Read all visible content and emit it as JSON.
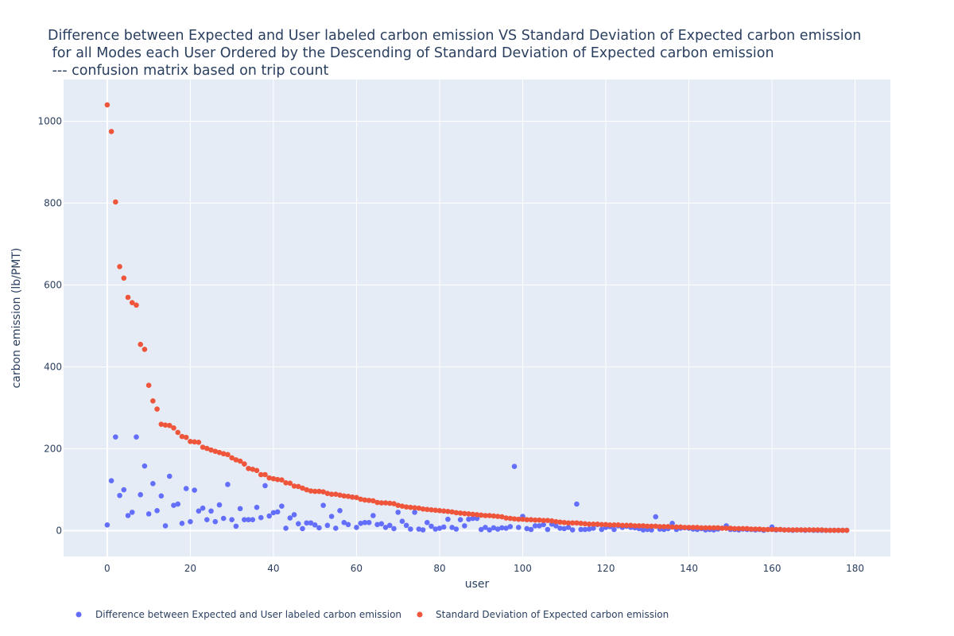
{
  "chart_data": {
    "type": "scatter",
    "title_lines": [
      "Difference between Expected and User labeled carbon emission VS Standard Deviation of Expected carbon emission",
      " for all Modes each User Ordered by the Descending of Standard Deviation of Expected carbon emission",
      " --- confusion matrix based on trip count"
    ],
    "xlabel": "user",
    "ylabel": "carbon emission (lb/PMT)",
    "xlim": [
      -10.5,
      188.5
    ],
    "ylim": [
      -63,
      1102
    ],
    "xticks": [
      0,
      20,
      40,
      60,
      80,
      100,
      120,
      140,
      160,
      180
    ],
    "yticks": [
      0,
      200,
      400,
      600,
      800,
      1000
    ],
    "grid": true,
    "legend_position": "bottom-left, horizontal",
    "x": [
      0,
      1,
      2,
      3,
      4,
      5,
      6,
      7,
      8,
      9,
      10,
      11,
      12,
      13,
      14,
      15,
      16,
      17,
      18,
      19,
      20,
      21,
      22,
      23,
      24,
      25,
      26,
      27,
      28,
      29,
      30,
      31,
      32,
      33,
      34,
      35,
      36,
      37,
      38,
      39,
      40,
      41,
      42,
      43,
      44,
      45,
      46,
      47,
      48,
      49,
      50,
      51,
      52,
      53,
      54,
      55,
      56,
      57,
      58,
      59,
      60,
      61,
      62,
      63,
      64,
      65,
      66,
      67,
      68,
      69,
      70,
      71,
      72,
      73,
      74,
      75,
      76,
      77,
      78,
      79,
      80,
      81,
      82,
      83,
      84,
      85,
      86,
      87,
      88,
      89,
      90,
      91,
      92,
      93,
      94,
      95,
      96,
      97,
      98,
      99,
      100,
      101,
      102,
      103,
      104,
      105,
      106,
      107,
      108,
      109,
      110,
      111,
      112,
      113,
      114,
      115,
      116,
      117,
      118,
      119,
      120,
      121,
      122,
      123,
      124,
      125,
      126,
      127,
      128,
      129,
      130,
      131,
      132,
      133,
      134,
      135,
      136,
      137,
      138,
      139,
      140,
      141,
      142,
      143,
      144,
      145,
      146,
      147,
      148,
      149,
      150,
      151,
      152,
      153,
      154,
      155,
      156,
      157,
      158,
      159,
      160,
      161,
      162,
      163,
      164,
      165,
      166,
      167,
      168,
      169,
      170,
      171,
      172,
      173,
      174,
      175,
      176,
      177,
      178
    ],
    "series": [
      {
        "name": "Difference between Expected and User labeled carbon emission",
        "color": "#636efa",
        "values": [
          14,
          122,
          229,
          86,
          100,
          37,
          45,
          229,
          88,
          158,
          41,
          115,
          49,
          85,
          12,
          133,
          62,
          65,
          18,
          103,
          22,
          99,
          48,
          55,
          27,
          48,
          22,
          63,
          30,
          113,
          27,
          11,
          54,
          27,
          27,
          27,
          57,
          32,
          110,
          36,
          44,
          46,
          60,
          6,
          31,
          39,
          17,
          5,
          19,
          19,
          14,
          7,
          62,
          13,
          35,
          6,
          49,
          20,
          15,
          82,
          8,
          18,
          20,
          20,
          37,
          15,
          17,
          8,
          13,
          5,
          45,
          23,
          13,
          4,
          45,
          4,
          2,
          20,
          11,
          4,
          6,
          9,
          28,
          8,
          4,
          27,
          12,
          28,
          30,
          30,
          3,
          8,
          2,
          7,
          4,
          7,
          6,
          10,
          157,
          8,
          35,
          5,
          3,
          12,
          12,
          15,
          3,
          16,
          12,
          6,
          5,
          8,
          2,
          65,
          3,
          3,
          4,
          6,
          15,
          3,
          8,
          10,
          3,
          12,
          8,
          11,
          8,
          7,
          5,
          2,
          3,
          2,
          34,
          4,
          3,
          5,
          18,
          3,
          6,
          7,
          6,
          4,
          3,
          5,
          2,
          3,
          2,
          4,
          6,
          12,
          3,
          3,
          2,
          4,
          3,
          3,
          2,
          3,
          1,
          3,
          9,
          2,
          3,
          2,
          2,
          1,
          2,
          2,
          1,
          2,
          1,
          1,
          1,
          1,
          1,
          1,
          1,
          1,
          1
        ]
      },
      {
        "name": "Standard Deviation of Expected carbon emission",
        "color": "#ef553b",
        "values": [
          1040,
          975,
          803,
          645,
          617,
          570,
          557,
          551,
          455,
          443,
          355,
          317,
          297,
          260,
          258,
          257,
          251,
          240,
          230,
          228,
          218,
          217,
          216,
          204,
          201,
          197,
          194,
          191,
          188,
          186,
          178,
          173,
          170,
          163,
          152,
          150,
          147,
          137,
          137,
          129,
          127,
          125,
          124,
          117,
          116,
          109,
          108,
          104,
          100,
          97,
          96,
          96,
          95,
          91,
          89,
          89,
          87,
          85,
          84,
          82,
          81,
          77,
          75,
          74,
          73,
          69,
          68,
          68,
          67,
          66,
          62,
          60,
          58,
          57,
          56,
          55,
          53,
          52,
          51,
          50,
          49,
          48,
          47,
          46,
          44,
          43,
          42,
          41,
          40,
          39,
          38,
          37,
          37,
          36,
          35,
          34,
          31,
          30,
          29,
          28,
          28,
          27,
          27,
          26,
          26,
          25,
          25,
          24,
          22,
          21,
          20,
          19,
          19,
          19,
          18,
          17,
          16,
          16,
          16,
          15,
          15,
          14,
          14,
          14,
          13,
          13,
          13,
          12,
          12,
          12,
          11,
          11,
          11,
          10,
          10,
          10,
          9,
          9,
          9,
          8,
          8,
          8,
          8,
          7,
          7,
          7,
          7,
          7,
          6,
          6,
          6,
          5,
          5,
          5,
          5,
          4,
          4,
          4,
          3,
          3,
          3,
          3,
          3,
          2,
          2,
          2,
          2,
          2,
          2,
          2,
          2,
          2,
          2,
          1,
          1,
          1,
          1,
          1,
          1
        ]
      }
    ]
  }
}
